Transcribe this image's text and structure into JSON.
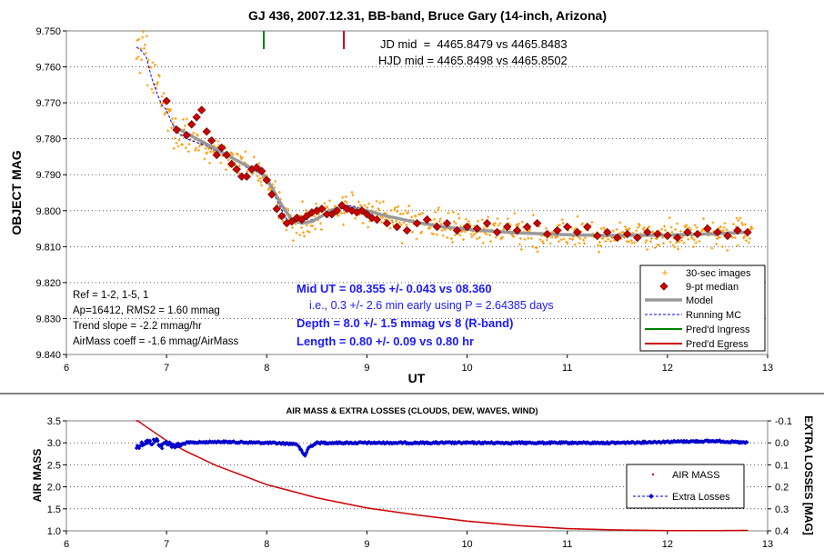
{
  "chart_data": [
    {
      "type": "scatter",
      "title": "GJ 436, 2007.12.31, BB-band, Bruce Gary (14-inch, Arizona)",
      "xlabel": "UT",
      "ylabel": "OBJECT MAG",
      "xlim": [
        6,
        13
      ],
      "ylim": [
        9.75,
        9.84
      ],
      "y_inverted": true,
      "x_ticks": [
        "6",
        "7",
        "8",
        "9",
        "10",
        "11",
        "12",
        "13"
      ],
      "y_ticks": [
        "9.750",
        "9.760",
        "9.770",
        "9.780",
        "9.790",
        "9.800",
        "9.810",
        "9.820",
        "9.830",
        "9.840"
      ],
      "jd_lines": [
        "JD mid  =  4465.8479 vs 4465.8483",
        "HJD mid = 4465.8498 vs 4465.8502"
      ],
      "info_lines": [
        "Ref = 1-2, 1-5, 1",
        "Ap=16412, RMS2 = 1.60 mmag",
        "Trend slope = -2.2 mmag/hr",
        "AirMass coeff = -1.6 mmag/AirMass"
      ],
      "result_lines": [
        {
          "text": "Mid UT = 08.355 +/- 0.043 vs 08.360",
          "style": "bold"
        },
        {
          "text": "i.e., 0.3 +/- 2.6 min early using P = 2.64385 days",
          "style": "normal"
        },
        {
          "text": "Depth = 8.0 +/- 1.5 mmag vs 8 (R-band)",
          "style": "bold"
        },
        {
          "text": "Length = 0.80 +/- 0.09 vs 0.80 hr",
          "style": "bold"
        }
      ],
      "legend": [
        {
          "label": "30-sec images",
          "color": "#ff9900"
        },
        {
          "label": "9-pt median",
          "color": "#cc0000"
        },
        {
          "label": "Model",
          "color": "#999999"
        },
        {
          "label": "Running MC",
          "color": "#0000ff"
        },
        {
          "label": "Pred'd Ingress",
          "color": "#008000"
        },
        {
          "label": "Pred'd Egress",
          "color": "#cc0000"
        }
      ],
      "legend_position": "bottom-right",
      "ingress_ut": 7.97,
      "egress_ut": 8.77,
      "series": [
        {
          "name": "Model",
          "x": [
            7.07,
            7.2,
            7.4,
            7.6,
            7.8,
            7.97,
            8.05,
            8.15,
            8.25,
            8.35,
            8.45,
            8.55,
            8.65,
            8.77,
            8.9,
            9.0,
            9.2,
            9.5,
            9.8,
            10.0,
            10.5,
            11.0,
            11.5,
            12.0,
            12.5,
            12.8
          ],
          "y": [
            9.7765,
            9.7785,
            9.7815,
            9.7845,
            9.7875,
            9.79,
            9.7935,
            9.7985,
            9.8025,
            9.8035,
            9.803,
            9.8015,
            9.7998,
            9.799,
            9.7995,
            9.8,
            9.8015,
            9.8033,
            9.8046,
            9.8052,
            9.8062,
            9.8067,
            9.8069,
            9.8068,
            9.8064,
            9.806
          ]
        },
        {
          "name": "9-pt median",
          "x": [
            7.0,
            7.1,
            7.2,
            7.25,
            7.3,
            7.35,
            7.4,
            7.45,
            7.5,
            7.55,
            7.6,
            7.65,
            7.7,
            7.75,
            7.8,
            7.85,
            7.9,
            7.95,
            8.0,
            8.05,
            8.1,
            8.15,
            8.2,
            8.25,
            8.3,
            8.35,
            8.4,
            8.45,
            8.5,
            8.55,
            8.6,
            8.65,
            8.7,
            8.75,
            8.8,
            8.85,
            8.9,
            8.95,
            9.0,
            9.05,
            9.1,
            9.2,
            9.3,
            9.4,
            9.5,
            9.6,
            9.7,
            9.8,
            9.9,
            10.0,
            10.1,
            10.2,
            10.3,
            10.4,
            10.5,
            10.6,
            10.7,
            10.8,
            10.9,
            11.0,
            11.1,
            11.2,
            11.3,
            11.4,
            11.5,
            11.6,
            11.7,
            11.8,
            11.9,
            12.0,
            12.1,
            12.2,
            12.3,
            12.4,
            12.5,
            12.6,
            12.7,
            12.8
          ],
          "y": [
            9.7695,
            9.7775,
            9.779,
            9.776,
            9.774,
            9.772,
            9.778,
            9.7805,
            9.7845,
            9.7825,
            9.7845,
            9.787,
            9.7885,
            9.7905,
            9.7905,
            9.7885,
            9.788,
            9.789,
            9.7915,
            9.7955,
            9.7995,
            9.8015,
            9.8035,
            9.803,
            9.802,
            9.8025,
            9.8015,
            9.8005,
            9.8,
            9.7995,
            9.801,
            9.801,
            9.8,
            9.7985,
            9.7995,
            9.8,
            9.8005,
            9.8,
            9.801,
            9.802,
            9.8025,
            9.8035,
            9.8045,
            9.8055,
            9.8035,
            9.8025,
            9.8045,
            9.8035,
            9.8055,
            9.8045,
            9.805,
            9.8035,
            9.806,
            9.8045,
            9.8055,
            9.8045,
            9.8035,
            9.8065,
            9.8055,
            9.8045,
            9.806,
            9.8045,
            9.807,
            9.806,
            9.8075,
            9.8065,
            9.8075,
            9.806,
            9.8065,
            9.807,
            9.8075,
            9.806,
            9.8065,
            9.805,
            9.806,
            9.807,
            9.8055,
            9.806
          ]
        },
        {
          "name": "Running MC",
          "x": [
            6.7,
            6.75,
            6.8,
            6.85,
            6.9,
            6.95,
            7.0,
            7.05,
            7.1,
            7.2,
            7.3,
            7.4,
            7.5,
            7.6,
            7.7,
            7.8,
            7.9,
            8.0,
            8.1,
            8.2,
            8.3,
            8.4,
            8.5,
            8.6,
            8.7,
            8.8,
            8.9,
            9.0,
            9.2,
            9.5,
            9.8,
            10.0,
            10.5,
            11.0,
            11.5,
            12.0,
            12.5,
            12.8
          ],
          "y": [
            9.7545,
            9.7555,
            9.7575,
            9.763,
            9.767,
            9.7705,
            9.772,
            9.7755,
            9.778,
            9.78,
            9.781,
            9.782,
            9.7835,
            9.7845,
            9.786,
            9.788,
            9.789,
            9.791,
            9.797,
            9.8025,
            9.8035,
            9.803,
            9.802,
            9.8005,
            9.7995,
            9.7985,
            9.799,
            9.8,
            9.8015,
            9.803,
            9.8045,
            9.805,
            9.806,
            9.8068,
            9.807,
            9.8068,
            9.8065,
            9.806
          ]
        }
      ]
    },
    {
      "type": "scatter",
      "title": "AIR MASS & EXTRA LOSSES (CLOUDS, DEW, WAVES, WIND)",
      "xlabel": "",
      "ylabel": "AIR MASS",
      "y2label": "EXTRA LOSSES [MAG]",
      "xlim": [
        6,
        13
      ],
      "ylim": [
        1.0,
        3.5
      ],
      "y2lim": [
        -0.1,
        0.4
      ],
      "y2_inverted": true,
      "x_ticks": [
        "6",
        "7",
        "8",
        "9",
        "10",
        "11",
        "12",
        "13"
      ],
      "y_ticks": [
        "1.0",
        "1.5",
        "2.0",
        "2.5",
        "3.0",
        "3.5"
      ],
      "y2_ticks": [
        "-0.1",
        "0.0",
        "0.1",
        "0.2",
        "0.3",
        "0.4"
      ],
      "legend": [
        {
          "label": "AIR MASS",
          "color": "#cc0000"
        },
        {
          "label": "Extra Losses",
          "color": "#0000cc"
        }
      ],
      "legend_position": "bottom-right",
      "series": [
        {
          "name": "AIR MASS",
          "x": [
            6.7,
            6.8,
            7.0,
            7.2,
            7.5,
            8.0,
            8.5,
            9.0,
            9.5,
            10.0,
            10.5,
            11.0,
            11.5,
            12.0,
            12.5,
            12.8
          ],
          "y": [
            3.52,
            3.36,
            3.05,
            2.8,
            2.48,
            2.05,
            1.75,
            1.52,
            1.36,
            1.22,
            1.12,
            1.05,
            1.02,
            1.005,
            1.005,
            1.01
          ]
        },
        {
          "name": "Extra Losses",
          "x": [
            6.7,
            6.75,
            6.8,
            6.85,
            6.9,
            6.95,
            7.0,
            7.05,
            7.1,
            7.2,
            7.5,
            8.0,
            8.3,
            8.38,
            8.42,
            8.5,
            9.0,
            9.5,
            10.0,
            10.5,
            11.0,
            11.5,
            12.0,
            12.5,
            12.8
          ],
          "y": [
            0.02,
            0.005,
            -0.005,
            0.0,
            -0.015,
            0.02,
            -0.005,
            0.01,
            0.015,
            0.0,
            -0.005,
            0.0,
            0.005,
            0.06,
            0.02,
            0.0,
            0.0,
            0.0,
            0.0,
            0.0,
            0.0,
            0.0,
            -0.005,
            -0.008,
            0.0
          ]
        }
      ]
    }
  ]
}
